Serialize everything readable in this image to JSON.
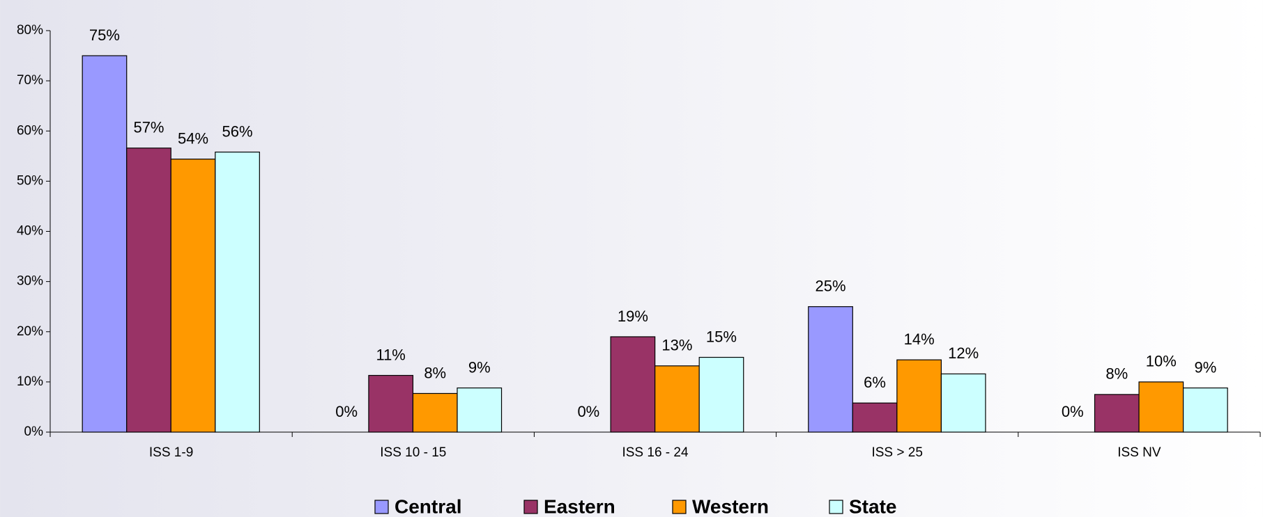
{
  "chart_data": {
    "type": "bar",
    "categories": [
      "ISS 1-9",
      "ISS 10 - 15",
      "ISS 16 - 24",
      "ISS > 25",
      "ISS NV"
    ],
    "series": [
      {
        "name": "Central",
        "color": "#9999ff",
        "values": [
          75,
          0,
          0,
          25,
          0
        ],
        "value_labels": [
          "75%",
          "0%",
          "0%",
          "25%",
          "0%"
        ]
      },
      {
        "name": "Eastern",
        "color": "#993366",
        "values": [
          56.6,
          11.3,
          19,
          5.8,
          7.5
        ],
        "value_labels": [
          "57%",
          "11%",
          "19%",
          "6%",
          "8%"
        ]
      },
      {
        "name": "Western",
        "color": "#ff9900",
        "values": [
          54.4,
          7.7,
          13.2,
          14.4,
          10
        ],
        "value_labels": [
          "54%",
          "8%",
          "13%",
          "14%",
          "10%"
        ]
      },
      {
        "name": "State",
        "color": "#ccffff",
        "values": [
          55.8,
          8.8,
          14.9,
          11.6,
          8.8
        ],
        "value_labels": [
          "56%",
          "9%",
          "15%",
          "12%",
          "9%"
        ]
      }
    ],
    "ylim": [
      0,
      80
    ],
    "yticks": [
      {
        "value": 0,
        "label": "0%"
      },
      {
        "value": 10,
        "label": "10%"
      },
      {
        "value": 20,
        "label": "20%"
      },
      {
        "value": 30,
        "label": "30%"
      },
      {
        "value": 40,
        "label": "40%"
      },
      {
        "value": 50,
        "label": "50%"
      },
      {
        "value": 60,
        "label": "60%"
      },
      {
        "value": 70,
        "label": "70%"
      },
      {
        "value": 80,
        "label": "80%"
      }
    ],
    "legend": "bottom"
  }
}
